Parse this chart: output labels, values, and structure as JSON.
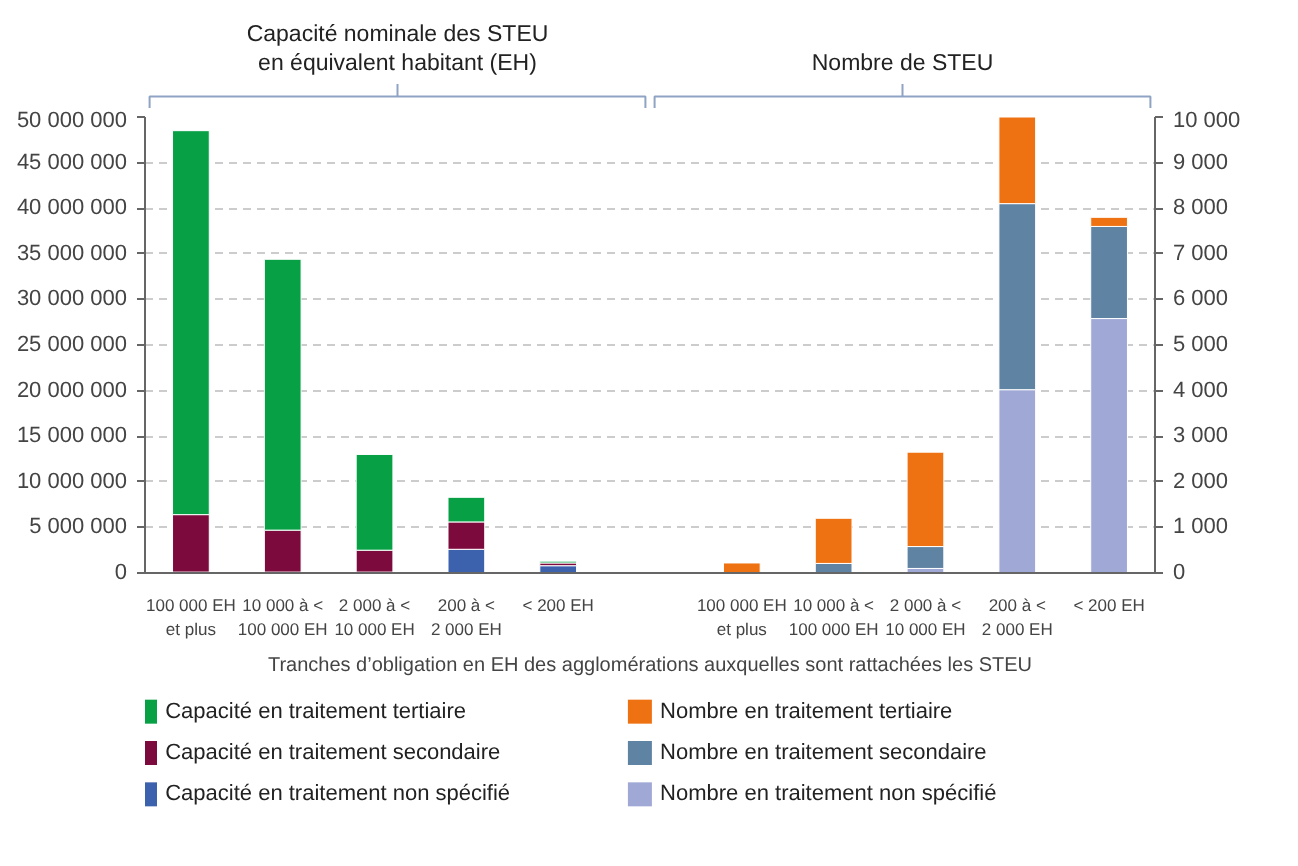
{
  "chart_data": {
    "type": "bar",
    "stacked": true,
    "xlabel": "Tranches d’obligation en EH des agglomérations auxquelles sont rattachées les STEU",
    "categories": [
      "100 000 EH\net plus",
      "10 000 à <\n100 000 EH",
      "2 000 à <\n10 000 EH",
      "200 à <\n2 000 EH",
      "< 200 EH",
      null,
      "100 000 EH\net plus",
      "10 000 à <\n100 000 EH",
      "2 000 à <\n10 000 EH",
      "200 à <\n2 000 EH",
      "< 200 EH"
    ],
    "series": [
      {
        "name": "Capacité en traitement non spécifié",
        "color": "#3d62ad",
        "values": [
          100000,
          100000,
          100000,
          2600000,
          800000,
          null,
          null,
          null,
          null,
          null,
          null
        ]
      },
      {
        "name": "Capacité en traitement secondaire",
        "color": "#7d0a3c",
        "values": [
          6300000,
          4600000,
          2400000,
          3000000,
          300000,
          null,
          null,
          null,
          null,
          null,
          null
        ]
      },
      {
        "name": "Capacité en traitement tertiaire",
        "color": "#07a045",
        "values": [
          42100000,
          29700000,
          10500000,
          2700000,
          200000,
          null,
          null,
          null,
          null,
          null,
          null
        ]
      },
      {
        "name": "Nombre en traitement non spécifié",
        "color": "#a0a8d6",
        "axis": "y2",
        "values": [
          null,
          null,
          null,
          null,
          null,
          null,
          null,
          null,
          100,
          4020,
          5580
        ]
      },
      {
        "name": "Nombre en traitement secondaire",
        "color": "#5f83a3",
        "axis": "y2",
        "values": [
          null,
          null,
          null,
          null,
          null,
          null,
          null,
          210,
          480,
          4080,
          2020
        ]
      },
      {
        "name": "Nombre en traitement tertiaire",
        "color": "#ef7212",
        "axis": "y2",
        "values": [
          null,
          null,
          null,
          null,
          null,
          null,
          220,
          990,
          2070,
          2050,
          200
        ]
      }
    ],
    "ylim": [
      0,
      50000000
    ],
    "yticks": [
      0,
      {
        "value": 5000000,
        "label": "5 000 000"
      },
      {
        "value": 10000000,
        "label": "10 000 000"
      },
      {
        "value": 15000000,
        "label": "15 000 000"
      },
      {
        "value": 20000000,
        "label": "20 000 000"
      },
      {
        "value": 25000000,
        "label": "25 000 000"
      },
      {
        "value": 30000000,
        "label": "30 000 000"
      },
      {
        "value": 35000000,
        "label": "35 000 000"
      },
      {
        "value": 40000000,
        "label": "40 000 000"
      },
      {
        "value": 45000000,
        "label": "45 000 000"
      },
      {
        "value": 50000000,
        "label": "50 000 000"
      }
    ],
    "y2lim": [
      0,
      10000
    ],
    "y2ticks": [
      0,
      {
        "value": 1000,
        "label": "1 000"
      },
      {
        "value": 2000,
        "label": "2 000"
      },
      {
        "value": 3000,
        "label": "3 000"
      },
      {
        "value": 4000,
        "label": "4 000"
      },
      {
        "value": 5000,
        "label": "5 000"
      },
      {
        "value": 6000,
        "label": "6 000"
      },
      {
        "value": 7000,
        "label": "7 000"
      },
      {
        "value": 8000,
        "label": "8 000"
      },
      {
        "value": 9000,
        "label": "9 000"
      },
      {
        "value": 10000,
        "label": "10 000"
      }
    ],
    "annotations": [
      "Capacité nominale des STEU\nen équivalent habitant (EH)",
      "Nombre de STEU"
    ],
    "grid": "y",
    "legend": "bottom"
  }
}
